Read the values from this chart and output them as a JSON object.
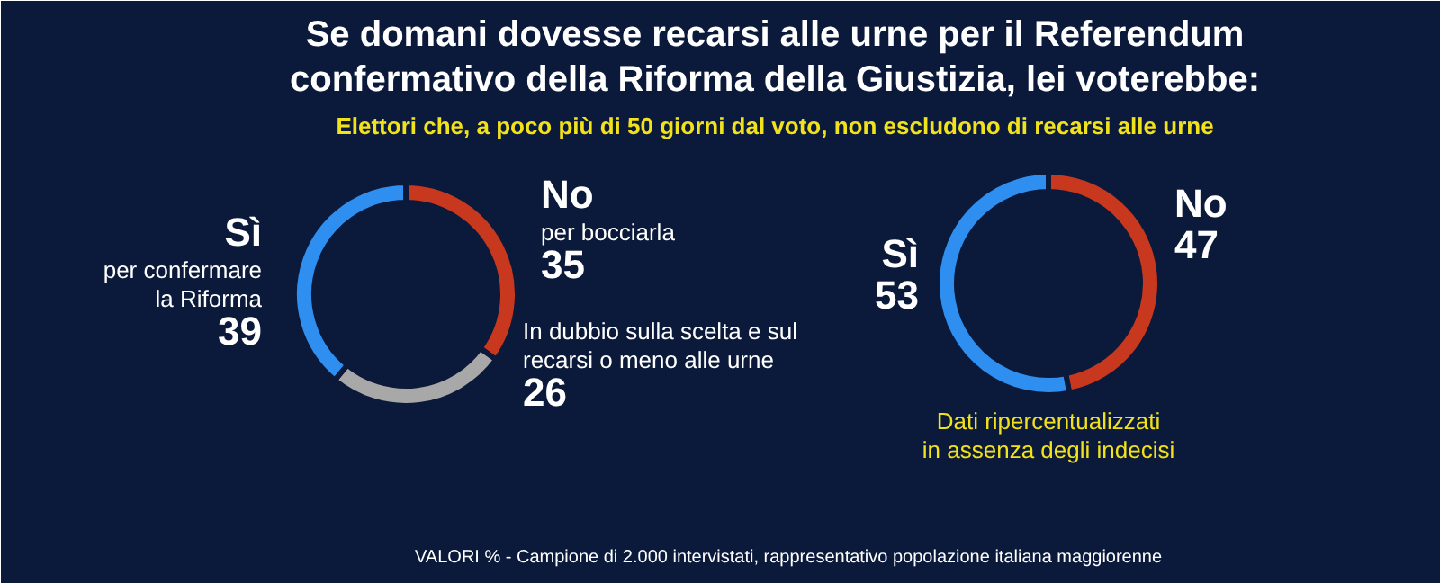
{
  "chart_data": [
    {
      "type": "donut",
      "title": "Se domani dovesse recarsi alle urne per il Referendum\nconfermativo della Riforma della Giustizia, lei voterebbe:",
      "subtitle": "Elettori che, a poco più di 50 giorni dal voto, non escludono di recarsi alle urne",
      "categories": [
        "No\nper bocciarla",
        "In dubbio sulla scelta e sul\nrecarsi o meno alle urne",
        "Sì\nper confermare\nla Riforma"
      ],
      "values": [
        35,
        26,
        39
      ],
      "colors": [
        "#c8381e",
        "#a8a8a8",
        "#2f8ff0"
      ],
      "data_labels": true,
      "annotations": [
        "VALORI % - Campione di 2.000 intervistati, rappresentativo popolazione italiana maggiorenne"
      ]
    },
    {
      "type": "donut",
      "categories": [
        "No",
        "Sì"
      ],
      "values": [
        47,
        53
      ],
      "colors": [
        "#c8381e",
        "#2f8ff0"
      ],
      "data_labels": true,
      "annotations": [
        "Dati ripercentualizzati\nin assenza degli indecisi"
      ]
    }
  ]
}
